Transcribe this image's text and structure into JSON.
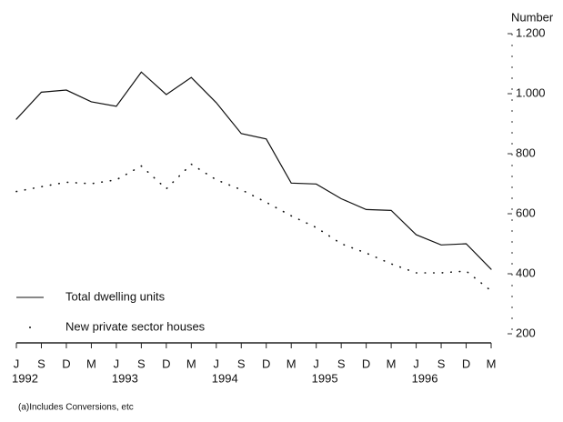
{
  "chart_data": {
    "type": "line",
    "y_label": "Number",
    "footnote": "(a)Includes Conversions, etc",
    "categories": [
      "J",
      "S",
      "D",
      "M",
      "J",
      "S",
      "D",
      "M",
      "J",
      "S",
      "D",
      "M",
      "J",
      "S",
      "D",
      "M",
      "J",
      "S",
      "D",
      "M"
    ],
    "years": [
      "1992",
      null,
      null,
      null,
      "1993",
      null,
      null,
      null,
      "1994",
      null,
      null,
      null,
      "1995",
      null,
      null,
      null,
      "1996",
      null,
      null,
      null
    ],
    "series": [
      {
        "name": "Total dwelling units",
        "color": "#111111",
        "style": "solid",
        "values": [
          915,
          1005,
          1012,
          973,
          958,
          1072,
          997,
          1054,
          970,
          867,
          849,
          702,
          699,
          650,
          614,
          611,
          530,
          496,
          500,
          415
        ]
      },
      {
        "name": "New private sector houses",
        "color": "#111111",
        "style": "dotted",
        "values": [
          674,
          690,
          705,
          700,
          713,
          759,
          683,
          765,
          713,
          680,
          638,
          593,
          554,
          500,
          469,
          433,
          403,
          403,
          409,
          343
        ]
      }
    ],
    "ylim": [
      200,
      1200
    ],
    "yticks": [
      200,
      400,
      600,
      800,
      {
        "value": 1000,
        "label": "1.000"
      },
      {
        "value": 1200,
        "label": "1.200"
      }
    ]
  }
}
